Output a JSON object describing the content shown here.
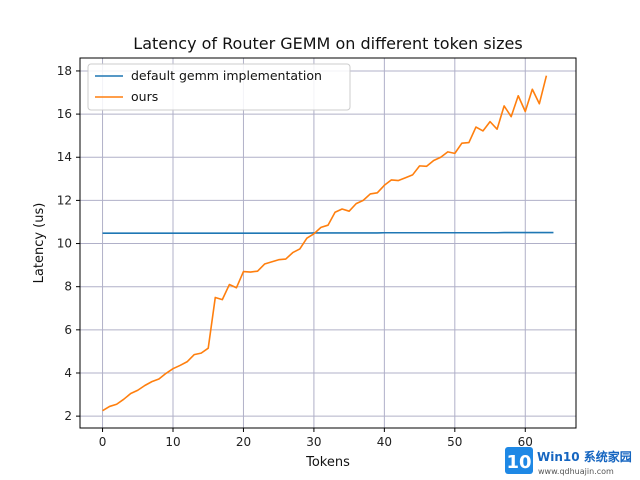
{
  "chart_data": {
    "type": "line",
    "title": "Latency of Router GEMM on different token sizes",
    "xlabel": "Tokens",
    "ylabel": "Latency (us)",
    "xlim": [
      -3.2,
      67.2
    ],
    "ylim": [
      1.45,
      18.6
    ],
    "xticks": [
      0,
      10,
      20,
      30,
      40,
      50,
      60
    ],
    "yticks": [
      2,
      4,
      6,
      8,
      10,
      12,
      14,
      16,
      18
    ],
    "grid": true,
    "legend_position": "top-left",
    "series": [
      {
        "name": "default gemm implementation",
        "color": "#1f77b4",
        "x": [
          0,
          1,
          2,
          3,
          4,
          5,
          6,
          7,
          8,
          9,
          10,
          11,
          12,
          13,
          14,
          15,
          16,
          17,
          18,
          19,
          20,
          21,
          22,
          23,
          24,
          25,
          26,
          27,
          28,
          29,
          30,
          31,
          32,
          33,
          34,
          35,
          36,
          37,
          38,
          39,
          40,
          41,
          42,
          43,
          44,
          45,
          46,
          47,
          48,
          49,
          50,
          51,
          52,
          53,
          54,
          55,
          56,
          57,
          58,
          59,
          60,
          61,
          62,
          63,
          64
        ],
        "y": [
          10.48,
          10.48,
          10.48,
          10.48,
          10.48,
          10.48,
          10.48,
          10.48,
          10.48,
          10.48,
          10.48,
          10.48,
          10.48,
          10.48,
          10.48,
          10.48,
          10.48,
          10.48,
          10.48,
          10.48,
          10.48,
          10.48,
          10.48,
          10.48,
          10.48,
          10.48,
          10.48,
          10.48,
          10.48,
          10.48,
          10.49,
          10.49,
          10.49,
          10.49,
          10.49,
          10.49,
          10.49,
          10.49,
          10.49,
          10.49,
          10.5,
          10.5,
          10.5,
          10.5,
          10.5,
          10.5,
          10.5,
          10.5,
          10.5,
          10.5,
          10.5,
          10.5,
          10.5,
          10.5,
          10.5,
          10.5,
          10.5,
          10.51,
          10.51,
          10.51,
          10.51,
          10.51,
          10.51,
          10.51,
          10.51
        ]
      },
      {
        "name": "ours",
        "color": "#ff7f0e",
        "x": [
          0,
          1,
          2,
          3,
          4,
          5,
          6,
          7,
          8,
          9,
          10,
          11,
          12,
          13,
          14,
          15,
          16,
          17,
          18,
          19,
          20,
          21,
          22,
          23,
          24,
          25,
          26,
          27,
          28,
          29,
          30,
          31,
          32,
          33,
          34,
          35,
          36,
          37,
          38,
          39,
          40,
          41,
          42,
          43,
          44,
          45,
          46,
          47,
          48,
          49,
          50,
          51,
          52,
          53,
          54,
          55,
          56,
          57,
          58,
          59,
          60,
          61,
          62,
          63,
          64
        ],
        "y": [
          2.25,
          2.45,
          2.55,
          2.78,
          3.05,
          3.2,
          3.42,
          3.6,
          3.72,
          3.98,
          4.2,
          4.35,
          4.52,
          4.85,
          4.92,
          5.15,
          7.5,
          7.4,
          8.1,
          7.95,
          8.7,
          8.68,
          8.72,
          9.05,
          9.15,
          9.25,
          9.28,
          9.58,
          9.75,
          10.25,
          10.45,
          10.75,
          10.85,
          11.45,
          11.6,
          11.5,
          11.85,
          12.0,
          12.3,
          12.35,
          12.7,
          12.95,
          12.92,
          13.05,
          13.18,
          13.6,
          13.58,
          13.85,
          14.0,
          14.25,
          14.18,
          14.65,
          14.68,
          15.4,
          15.22,
          15.65,
          15.3,
          16.38,
          15.88,
          16.85,
          16.12,
          17.15,
          16.48,
          17.78,
          null
        ]
      }
    ]
  },
  "watermark": {
    "logo_text": "10",
    "brand": "Win10 系统家园",
    "url": "www.qdhuajin.com"
  }
}
